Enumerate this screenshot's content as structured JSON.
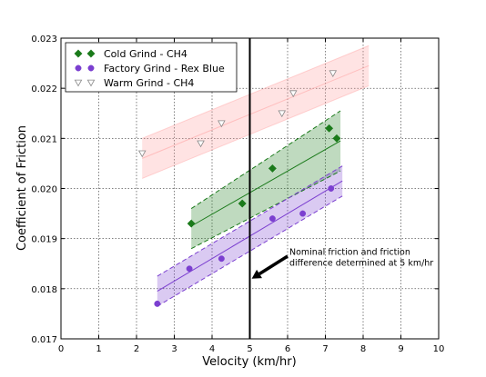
{
  "chart_data": {
    "type": "scatter",
    "xlabel": "Velocity (km/hr)",
    "ylabel": "Coefficient of Friction",
    "xlim": [
      0,
      10
    ],
    "ylim": [
      0.017,
      0.023
    ],
    "x_ticks": [
      "0",
      "1",
      "2",
      "3",
      "4",
      "5",
      "6",
      "7",
      "8",
      "9",
      "10"
    ],
    "y_ticks": [
      "0.017",
      "0.018",
      "0.019",
      "0.020",
      "0.021",
      "0.022",
      "0.023"
    ],
    "grid": true,
    "legend_position": "top-left",
    "series": [
      {
        "name": "Cold Grind - CH4",
        "marker": "diamond",
        "color": "#1a7a1a",
        "band_style": "dashed",
        "points": [
          [
            3.45,
            0.0193
          ],
          [
            4.8,
            0.0197
          ],
          [
            5.6,
            0.0204
          ],
          [
            7.1,
            0.0212
          ],
          [
            7.3,
            0.021
          ]
        ],
        "fit": {
          "x": [
            3.45,
            7.4
          ],
          "y": [
            0.01925,
            0.02095
          ]
        },
        "band": {
          "upper_start": 0.0196,
          "upper_end": 0.02155,
          "lower_start": 0.0188,
          "lower_end": 0.02035
        }
      },
      {
        "name": "Factory Grind - Rex Blue",
        "marker": "circle",
        "color": "#7b3fd0",
        "band_style": "dashed",
        "points": [
          [
            2.55,
            0.0177
          ],
          [
            3.4,
            0.0184
          ],
          [
            4.25,
            0.0186
          ],
          [
            5.6,
            0.0194
          ],
          [
            6.4,
            0.0195
          ],
          [
            7.15,
            0.02
          ]
        ],
        "fit": {
          "x": [
            2.55,
            7.45
          ],
          "y": [
            0.01795,
            0.02015
          ]
        },
        "band": {
          "upper_start": 0.01825,
          "upper_end": 0.02045,
          "lower_start": 0.01765,
          "lower_end": 0.01985
        }
      },
      {
        "name": "Warm Grind - CH4",
        "marker": "triangle-down",
        "color": "#ff9999",
        "band_style": "solid",
        "points": [
          [
            2.15,
            0.0207
          ],
          [
            3.7,
            0.0209
          ],
          [
            4.25,
            0.0213
          ],
          [
            5.85,
            0.0215
          ],
          [
            6.15,
            0.0219
          ],
          [
            7.2,
            0.0223
          ]
        ],
        "fit": {
          "x": [
            2.15,
            8.15
          ],
          "y": [
            0.0206,
            0.02245
          ]
        },
        "band": {
          "upper_start": 0.021,
          "upper_end": 0.02285,
          "lower_start": 0.0202,
          "lower_end": 0.02205
        }
      }
    ],
    "vline": {
      "x": 5,
      "color": "#000000"
    },
    "annotation": {
      "lines": [
        "Nominal friction and friction",
        "difference determined at 5 km/hr"
      ],
      "text_at": [
        6.0,
        0.0186
      ],
      "arrow_from": [
        6.0,
        0.01865
      ],
      "arrow_to": [
        5.05,
        0.0182
      ]
    }
  }
}
